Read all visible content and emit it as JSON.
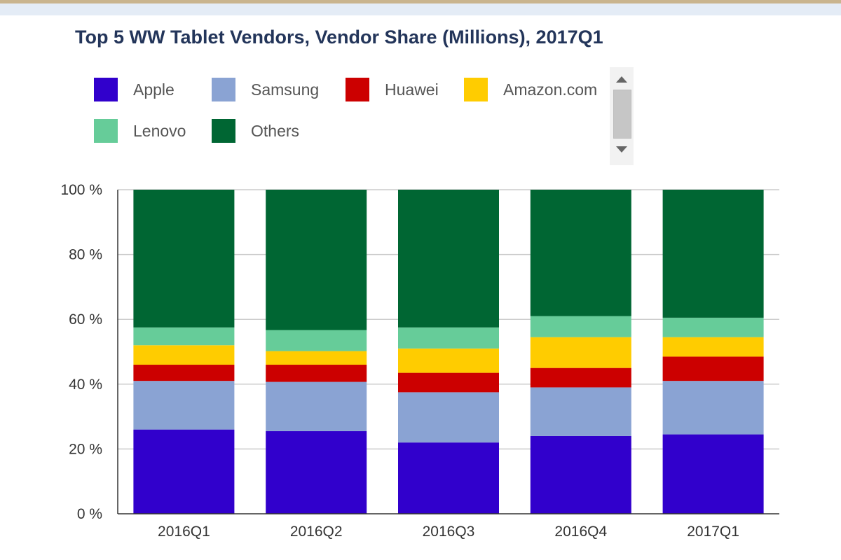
{
  "chart_data": {
    "type": "bar",
    "stacked": true,
    "title": "Top 5 WW Tablet Vendors, Vendor Share (Millions), 2017Q1",
    "categories": [
      "2016Q1",
      "2016Q2",
      "2016Q3",
      "2016Q4",
      "2017Q1"
    ],
    "series": [
      {
        "name": "Apple",
        "color": "#3100cc",
        "values": [
          26,
          25.5,
          22,
          24,
          24.5
        ]
      },
      {
        "name": "Samsung",
        "color": "#8aa3d3",
        "values": [
          15,
          15.2,
          15.5,
          15,
          16.5
        ]
      },
      {
        "name": "Huawei",
        "color": "#cc0000",
        "values": [
          5,
          5.3,
          6,
          6,
          7.5
        ]
      },
      {
        "name": "Amazon.com",
        "color": "#ffcc00",
        "values": [
          6,
          4.2,
          7.5,
          9.5,
          6
        ]
      },
      {
        "name": "Lenovo",
        "color": "#66cc99",
        "values": [
          5.5,
          6.5,
          6.5,
          6.5,
          6
        ]
      },
      {
        "name": "Others",
        "color": "#006633",
        "values": [
          42.5,
          43.3,
          42.5,
          39,
          39.5
        ]
      }
    ],
    "y_ticks": [
      "0 %",
      "20 %",
      "40 %",
      "60 %",
      "80 %",
      "100 %"
    ],
    "ylim": [
      0,
      100
    ],
    "grid": true,
    "legend_position": "top"
  },
  "legend_items": [
    "Apple",
    "Samsung",
    "Huawei",
    "Amazon.com",
    "Lenovo",
    "Others"
  ],
  "colors": {
    "title": "#23355a",
    "grid": "#cccccc",
    "axis": "#333333"
  }
}
